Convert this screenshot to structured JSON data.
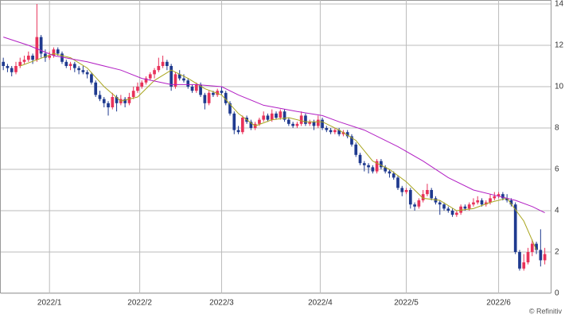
{
  "chart_data": {
    "type": "candlestick",
    "source": "© Refinitiv",
    "up_color": "#e8325a",
    "down_color": "#1f3a8f",
    "grid": true,
    "xlim": [
      -0.6,
      130.4
    ],
    "ylim": [
      0,
      14
    ],
    "yticks": [
      0,
      2,
      4,
      6,
      8,
      10,
      12,
      14
    ],
    "xticks": [
      {
        "value": 11,
        "label": "2022/1"
      },
      {
        "value": 32.5,
        "label": "2022/2"
      },
      {
        "value": 52,
        "label": "2022/3"
      },
      {
        "value": 75.5,
        "label": "2022/4"
      },
      {
        "value": 96,
        "label": "2022/5"
      },
      {
        "value": 118,
        "label": "2022/6"
      }
    ],
    "ohlc": [
      [
        11.2,
        11.4,
        10.8,
        11.0
      ],
      [
        11.0,
        11.1,
        10.7,
        10.9
      ],
      [
        10.9,
        11.0,
        10.5,
        10.7
      ],
      [
        10.7,
        11.2,
        10.6,
        11.0
      ],
      [
        11.0,
        11.4,
        10.9,
        11.2
      ],
      [
        11.2,
        11.5,
        11.1,
        11.3
      ],
      [
        11.3,
        11.7,
        11.2,
        11.5
      ],
      [
        11.5,
        11.6,
        11.1,
        11.3
      ],
      [
        11.3,
        14.0,
        11.2,
        12.4
      ],
      [
        12.4,
        12.5,
        11.4,
        11.6
      ],
      [
        11.6,
        11.8,
        11.2,
        11.4
      ],
      [
        11.4,
        11.7,
        11.3,
        11.5
      ],
      [
        11.5,
        11.9,
        11.4,
        11.8
      ],
      [
        11.8,
        11.9,
        11.5,
        11.6
      ],
      [
        11.6,
        11.7,
        11.1,
        11.2
      ],
      [
        11.2,
        11.3,
        10.9,
        11.0
      ],
      [
        11.0,
        11.2,
        10.8,
        11.1
      ],
      [
        11.1,
        11.2,
        10.7,
        10.9
      ],
      [
        10.9,
        11.0,
        10.6,
        10.8
      ],
      [
        10.8,
        11.0,
        10.6,
        10.7
      ],
      [
        10.7,
        10.8,
        10.4,
        10.6
      ],
      [
        10.6,
        10.7,
        10.1,
        10.2
      ],
      [
        10.2,
        10.3,
        9.5,
        9.6
      ],
      [
        9.6,
        9.8,
        9.3,
        9.4
      ],
      [
        9.4,
        9.5,
        9.0,
        9.2
      ],
      [
        9.2,
        9.3,
        8.6,
        9.0
      ],
      [
        9.0,
        9.7,
        8.9,
        9.5
      ],
      [
        9.5,
        9.6,
        8.8,
        9.2
      ],
      [
        9.2,
        9.6,
        9.1,
        9.4
      ],
      [
        9.4,
        9.5,
        9.0,
        9.2
      ],
      [
        9.2,
        9.7,
        9.1,
        9.5
      ],
      [
        9.5,
        10.0,
        9.4,
        9.8
      ],
      [
        9.8,
        10.2,
        9.7,
        10.0
      ],
      [
        10.0,
        10.3,
        9.9,
        10.2
      ],
      [
        10.2,
        10.5,
        10.1,
        10.4
      ],
      [
        10.4,
        10.7,
        10.3,
        10.6
      ],
      [
        10.6,
        10.9,
        10.4,
        10.8
      ],
      [
        10.8,
        11.4,
        10.7,
        11.0
      ],
      [
        11.0,
        11.5,
        10.9,
        11.2
      ],
      [
        11.2,
        11.3,
        10.8,
        11.0
      ],
      [
        11.0,
        11.1,
        9.8,
        10.0
      ],
      [
        10.0,
        10.7,
        9.9,
        10.6
      ],
      [
        10.6,
        10.8,
        10.3,
        10.4
      ],
      [
        10.4,
        10.6,
        10.2,
        10.3
      ],
      [
        10.3,
        10.4,
        9.9,
        10.0
      ],
      [
        10.0,
        10.1,
        9.7,
        9.8
      ],
      [
        9.8,
        10.2,
        9.7,
        10.1
      ],
      [
        10.1,
        10.2,
        9.5,
        9.6
      ],
      [
        9.6,
        9.7,
        8.9,
        9.2
      ],
      [
        9.2,
        9.8,
        9.1,
        9.7
      ],
      [
        9.7,
        9.8,
        9.5,
        9.6
      ],
      [
        9.6,
        9.9,
        9.5,
        9.8
      ],
      [
        9.8,
        10.0,
        9.6,
        9.7
      ],
      [
        9.7,
        9.8,
        9.1,
        9.2
      ],
      [
        9.2,
        9.3,
        8.6,
        8.7
      ],
      [
        8.7,
        8.8,
        7.7,
        7.9
      ],
      [
        7.9,
        8.1,
        7.7,
        7.8
      ],
      [
        7.8,
        8.6,
        7.7,
        8.5
      ],
      [
        8.5,
        8.6,
        8.2,
        8.3
      ],
      [
        8.3,
        8.4,
        7.9,
        8.0
      ],
      [
        8.0,
        8.3,
        7.9,
        8.2
      ],
      [
        8.2,
        8.5,
        8.1,
        8.4
      ],
      [
        8.4,
        8.8,
        8.3,
        8.6
      ],
      [
        8.6,
        8.7,
        8.3,
        8.4
      ],
      [
        8.4,
        8.9,
        8.3,
        8.7
      ],
      [
        8.7,
        8.8,
        8.4,
        8.5
      ],
      [
        8.5,
        8.9,
        8.4,
        8.8
      ],
      [
        8.8,
        8.9,
        8.3,
        8.4
      ],
      [
        8.4,
        8.5,
        8.1,
        8.2
      ],
      [
        8.2,
        8.3,
        8.0,
        8.1
      ],
      [
        8.1,
        8.3,
        8.0,
        8.2
      ],
      [
        8.2,
        8.8,
        8.1,
        8.6
      ],
      [
        8.6,
        8.7,
        8.1,
        8.2
      ],
      [
        8.2,
        8.4,
        8.1,
        8.3
      ],
      [
        8.3,
        8.4,
        7.9,
        8.1
      ],
      [
        8.1,
        8.6,
        8.0,
        8.4
      ],
      [
        8.4,
        8.5,
        7.9,
        8.0
      ],
      [
        8.0,
        8.1,
        7.8,
        7.9
      ],
      [
        7.9,
        8.0,
        7.7,
        7.8
      ],
      [
        7.8,
        8.0,
        7.7,
        7.9
      ],
      [
        7.9,
        8.0,
        7.6,
        7.7
      ],
      [
        7.7,
        7.9,
        7.6,
        7.8
      ],
      [
        7.8,
        7.9,
        7.5,
        7.6
      ],
      [
        7.6,
        7.7,
        7.1,
        7.2
      ],
      [
        7.2,
        7.3,
        6.6,
        6.7
      ],
      [
        6.7,
        6.8,
        6.2,
        6.3
      ],
      [
        6.3,
        6.4,
        5.9,
        6.2
      ],
      [
        6.2,
        6.3,
        5.8,
        6.1
      ],
      [
        6.1,
        6.2,
        5.8,
        5.9
      ],
      [
        5.9,
        6.5,
        5.8,
        6.4
      ],
      [
        6.4,
        6.5,
        6.0,
        6.1
      ],
      [
        6.1,
        6.2,
        5.8,
        5.9
      ],
      [
        5.9,
        6.0,
        5.6,
        5.8
      ],
      [
        5.8,
        5.9,
        5.5,
        5.6
      ],
      [
        5.6,
        5.7,
        5.0,
        5.1
      ],
      [
        5.1,
        5.2,
        4.7,
        4.9
      ],
      [
        4.9,
        5.1,
        4.8,
        5.0
      ],
      [
        5.0,
        5.1,
        4.1,
        4.3
      ],
      [
        4.3,
        4.4,
        4.0,
        4.2
      ],
      [
        4.2,
        4.6,
        4.1,
        4.5
      ],
      [
        4.5,
        5.0,
        4.4,
        4.8
      ],
      [
        4.8,
        5.3,
        4.7,
        5.0
      ],
      [
        5.0,
        5.1,
        4.5,
        4.6
      ],
      [
        4.6,
        4.7,
        4.3,
        4.4
      ],
      [
        4.4,
        4.5,
        3.8,
        4.3
      ],
      [
        4.3,
        4.4,
        4.0,
        4.1
      ],
      [
        4.1,
        4.2,
        3.9,
        4.0
      ],
      [
        4.0,
        4.1,
        3.7,
        3.8
      ],
      [
        3.8,
        4.0,
        3.7,
        3.9
      ],
      [
        3.9,
        4.3,
        3.8,
        4.2
      ],
      [
        4.2,
        4.3,
        4.0,
        4.1
      ],
      [
        4.1,
        4.4,
        4.0,
        4.3
      ],
      [
        4.3,
        4.6,
        4.2,
        4.4
      ],
      [
        4.4,
        4.7,
        4.3,
        4.5
      ],
      [
        4.5,
        4.6,
        4.2,
        4.3
      ],
      [
        4.3,
        4.5,
        4.2,
        4.4
      ],
      [
        4.4,
        4.8,
        4.3,
        4.6
      ],
      [
        4.6,
        4.9,
        4.5,
        4.7
      ],
      [
        4.7,
        4.9,
        4.6,
        4.8
      ],
      [
        4.8,
        4.9,
        4.5,
        4.6
      ],
      [
        4.6,
        4.8,
        4.4,
        4.5
      ],
      [
        4.5,
        4.6,
        4.2,
        4.3
      ],
      [
        4.3,
        4.4,
        1.9,
        2.0
      ],
      [
        2.0,
        2.1,
        1.1,
        1.2
      ],
      [
        1.2,
        1.9,
        1.1,
        1.5
      ],
      [
        1.5,
        2.2,
        1.4,
        2.0
      ],
      [
        2.0,
        2.6,
        1.8,
        2.4
      ],
      [
        2.4,
        2.5,
        1.9,
        2.1
      ],
      [
        2.1,
        3.1,
        1.3,
        1.6
      ],
      [
        1.6,
        2.2,
        1.4,
        1.9
      ]
    ],
    "series": [
      {
        "color": "#a9a51e",
        "x": [
          4,
          8,
          12,
          16,
          20,
          24,
          28,
          32,
          36,
          40,
          44,
          48,
          52,
          56,
          60,
          64,
          68,
          72,
          76,
          80,
          84,
          88,
          92,
          96,
          100,
          104,
          108,
          112,
          116,
          120,
          124,
          127
        ],
        "values": [
          11.0,
          11.3,
          11.6,
          11.4,
          10.9,
          10.0,
          9.3,
          9.5,
          10.3,
          10.8,
          10.4,
          9.9,
          9.6,
          8.7,
          8.1,
          8.4,
          8.5,
          8.3,
          8.3,
          7.9,
          7.4,
          6.4,
          6.0,
          5.4,
          4.6,
          4.5,
          4.0,
          4.1,
          4.4,
          4.6,
          3.5,
          2.1
        ]
      },
      {
        "color": "#b21fc4",
        "x": [
          0,
          6,
          12,
          20,
          28,
          33,
          40,
          46,
          52,
          56,
          62,
          70,
          76,
          80,
          86,
          94,
          100,
          106,
          112,
          118,
          122,
          126,
          129
        ],
        "values": [
          12.4,
          12.0,
          11.5,
          11.2,
          10.8,
          10.4,
          10.1,
          10.1,
          10.0,
          9.6,
          9.1,
          8.8,
          8.6,
          8.3,
          7.9,
          7.1,
          6.4,
          5.6,
          5.0,
          4.7,
          4.5,
          4.2,
          3.9
        ]
      }
    ]
  }
}
